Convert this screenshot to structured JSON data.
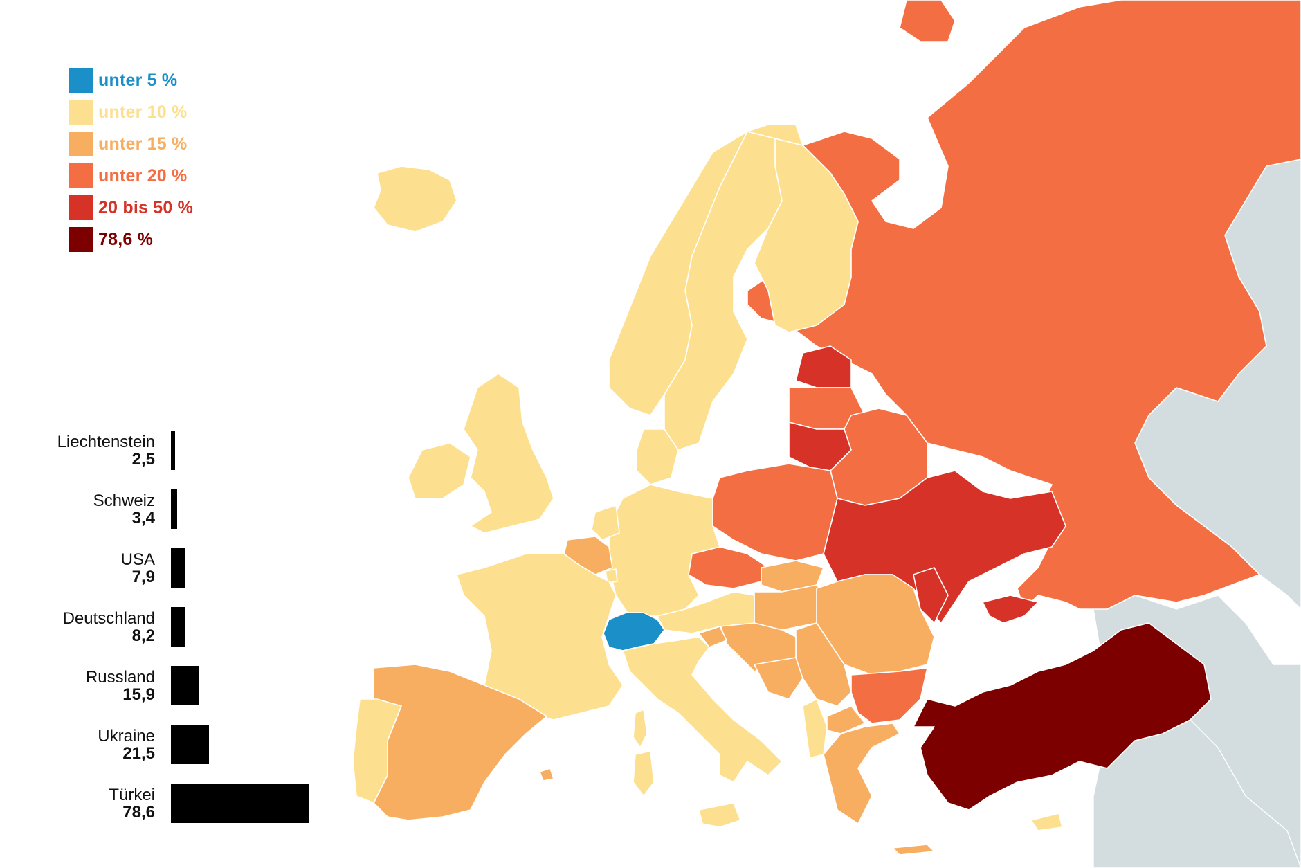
{
  "colors": {
    "below5": "#1b8fc7",
    "below10": "#fde08f",
    "below15": "#f8ae60",
    "below20": "#f36f43",
    "20to50": "#d63228",
    "78_6": "#7d0000",
    "outside": "#d3dde0",
    "water": "#ffffff"
  },
  "legend": [
    {
      "label": "unter 5 %",
      "color": "#1b8fc7"
    },
    {
      "label": "unter 10 %",
      "color": "#fde08f"
    },
    {
      "label": "unter 15 %",
      "color": "#f8ae60"
    },
    {
      "label": "unter 20 %",
      "color": "#f36f43"
    },
    {
      "label": "20 bis 50 %",
      "color": "#d63228"
    },
    {
      "label": "78,6 %",
      "color": "#7d0000"
    }
  ],
  "chart_data": {
    "type": "bar",
    "orientation": "horizontal",
    "categories": [
      "Liechtenstein",
      "Schweiz",
      "USA",
      "Deutschland",
      "Russland",
      "Ukraine",
      "Türkei"
    ],
    "values": [
      2.5,
      3.4,
      7.9,
      8.2,
      15.9,
      21.5,
      78.6
    ],
    "value_labels": [
      "2,5",
      "3,4",
      "7,9",
      "8,2",
      "15,9",
      "21,5",
      "78,6"
    ]
  },
  "bars": [
    {
      "name": "Liechtenstein",
      "value_label": "2,5"
    },
    {
      "name": "Schweiz",
      "value_label": "3,4"
    },
    {
      "name": "USA",
      "value_label": "7,9"
    },
    {
      "name": "Deutschland",
      "value_label": "8,2"
    },
    {
      "name": "Russland",
      "value_label": "15,9"
    },
    {
      "name": "Ukraine",
      "value_label": "21,5"
    },
    {
      "name": "Türkei",
      "value_label": "78,6"
    }
  ]
}
